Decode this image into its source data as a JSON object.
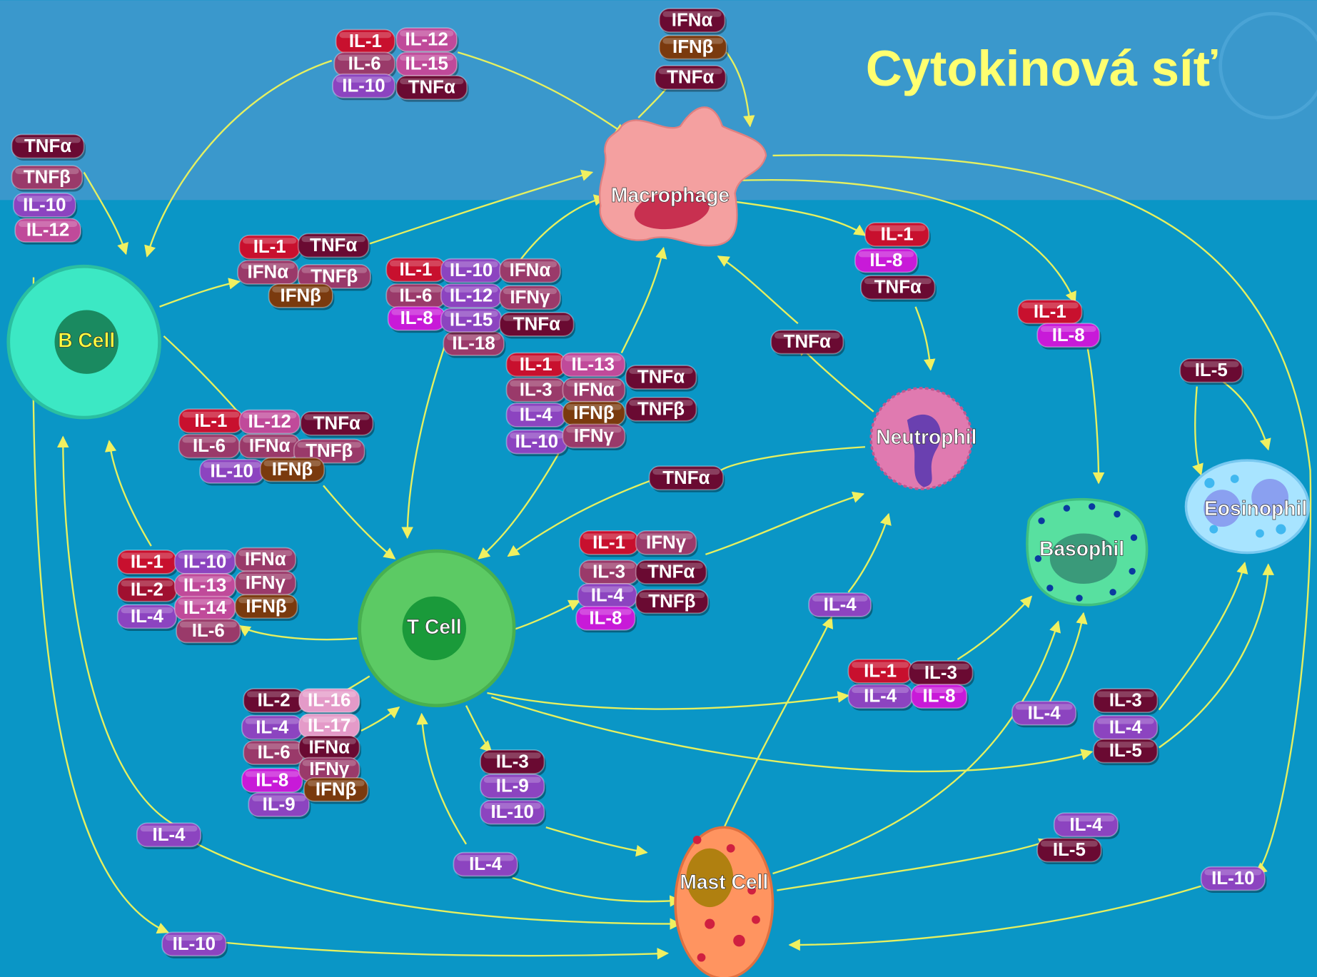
{
  "title": "Cytokinová síť",
  "cells": [
    "B Cell",
    "Macrophage",
    "Neutrophil",
    "T Cell",
    "Basophil",
    "Eosinophil",
    "Mast Cell"
  ],
  "cytokine_groups": [
    {
      "tags": [
        {
          "label": "IL-1",
          "color": "#c8102e"
        },
        {
          "label": "IL-12",
          "color": "#c04a9a"
        },
        {
          "label": "IL-6",
          "color": "#9a3a6a"
        },
        {
          "label": "IL-15",
          "color": "#c04a9a"
        },
        {
          "label": "IL-10",
          "color": "#8c44c0"
        },
        {
          "label": "TNFα",
          "color": "#6a0a32"
        }
      ]
    },
    {
      "tags": [
        {
          "label": "IFNα",
          "color": "#6a0a32"
        },
        {
          "label": "IFNβ",
          "color": "#7a3a0e"
        },
        {
          "label": "TNFα",
          "color": "#6a0a32"
        }
      ]
    },
    {
      "tags": [
        {
          "label": "TNFα",
          "color": "#6a0a32"
        },
        {
          "label": "TNFβ",
          "color": "#9a3a6a"
        },
        {
          "label": "IL-10",
          "color": "#8c44c0"
        },
        {
          "label": "IL-12",
          "color": "#c04a9a"
        }
      ]
    },
    {
      "tags": [
        {
          "label": "IL-1",
          "color": "#c8102e"
        },
        {
          "label": "TNFα",
          "color": "#6a0a32"
        },
        {
          "label": "IFNα",
          "color": "#9a3a6a"
        },
        {
          "label": "TNFβ",
          "color": "#9a3a6a"
        },
        {
          "label": "IFNβ",
          "color": "#7a3a0e"
        }
      ]
    },
    {
      "tags": [
        {
          "label": "IL-18",
          "color": "#9a3a6a"
        },
        {
          "label": "IL-1",
          "color": "#c8102e"
        },
        {
          "label": "IL-10",
          "color": "#8c44c0"
        },
        {
          "label": "IFNα",
          "color": "#9a3a6a"
        },
        {
          "label": "IL-6",
          "color": "#9a3a6a"
        },
        {
          "label": "IL-12",
          "color": "#8c44c0"
        },
        {
          "label": "IFNγ",
          "color": "#9a3a6a"
        },
        {
          "label": "IL-8",
          "color": "#c81ad8"
        },
        {
          "label": "IL-15",
          "color": "#8c44c0"
        },
        {
          "label": "TNFα",
          "color": "#6a0a32"
        }
      ]
    },
    {
      "tags": [
        {
          "label": "IL-1",
          "color": "#c8102e"
        },
        {
          "label": "IL-13",
          "color": "#c04a9a"
        },
        {
          "label": "TNFα",
          "color": "#6a0a32"
        },
        {
          "label": "IL-3",
          "color": "#9a3a6a"
        },
        {
          "label": "IFNα",
          "color": "#9a3a6a"
        },
        {
          "label": "IL-4",
          "color": "#8c44c0"
        },
        {
          "label": "IFNβ",
          "color": "#7a3a0e"
        },
        {
          "label": "TNFβ",
          "color": "#6a0a32"
        },
        {
          "label": "IL-10",
          "color": "#8c44c0"
        },
        {
          "label": "IFNγ",
          "color": "#9a3a6a"
        }
      ]
    },
    {
      "tags": [
        {
          "label": "TNFα",
          "color": "#6a0a32"
        }
      ]
    },
    {
      "tags": [
        {
          "label": "TNFα",
          "color": "#6a0a32"
        }
      ]
    },
    {
      "tags": [
        {
          "label": "IL-1",
          "color": "#c8102e"
        },
        {
          "label": "IL-8",
          "color": "#c81ad8"
        },
        {
          "label": "TNFα",
          "color": "#6a0a32"
        }
      ]
    },
    {
      "tags": [
        {
          "label": "IL-1",
          "color": "#c8102e"
        },
        {
          "label": "IL-8",
          "color": "#c81ad8"
        }
      ]
    },
    {
      "tags": [
        {
          "label": "IL-5",
          "color": "#6a0a32"
        }
      ]
    },
    {
      "tags": [
        {
          "label": "IL-1",
          "color": "#c8102e"
        },
        {
          "label": "IL-12",
          "color": "#c04a9a"
        },
        {
          "label": "TNFα",
          "color": "#6a0a32"
        },
        {
          "label": "IL-6",
          "color": "#9a3a6a"
        },
        {
          "label": "IFNα",
          "color": "#9a3a6a"
        },
        {
          "label": "TNFβ",
          "color": "#9a3a6a"
        },
        {
          "label": "IL-10",
          "color": "#8c44c0"
        },
        {
          "label": "IFNβ",
          "color": "#7a3a0e"
        }
      ]
    },
    {
      "tags": [
        {
          "label": "IL-1",
          "color": "#c8102e"
        },
        {
          "label": "IL-10",
          "color": "#8c44c0"
        },
        {
          "label": "IFNα",
          "color": "#9a3a6a"
        },
        {
          "label": "IL-2",
          "color": "#a01030"
        },
        {
          "label": "IL-13",
          "color": "#c04a9a"
        },
        {
          "label": "IFNγ",
          "color": "#9a3a6a"
        },
        {
          "label": "IL-4",
          "color": "#8c44c0"
        },
        {
          "label": "IL-14",
          "color": "#c04a9a"
        },
        {
          "label": "IFNβ",
          "color": "#7a3a0e"
        },
        {
          "label": "IL-6",
          "color": "#9a3a6a"
        }
      ]
    },
    {
      "tags": [
        {
          "label": "IL-1",
          "color": "#c8102e"
        },
        {
          "label": "IFNγ",
          "color": "#9a3a6a"
        },
        {
          "label": "IL-3",
          "color": "#9a3a6a"
        },
        {
          "label": "TNFα",
          "color": "#6a0a32"
        },
        {
          "label": "IL-4",
          "color": "#8c44c0"
        },
        {
          "label": "TNFβ",
          "color": "#6a0a32"
        },
        {
          "label": "IL-8",
          "color": "#c81ad8"
        }
      ]
    },
    {
      "tags": [
        {
          "label": "IL-4",
          "color": "#8c44c0"
        }
      ]
    },
    {
      "tags": [
        {
          "label": "IL-1",
          "color": "#c8102e"
        },
        {
          "label": "IL-3",
          "color": "#6a0a32"
        },
        {
          "label": "IL-4",
          "color": "#8c44c0"
        },
        {
          "label": "IL-8",
          "color": "#c81ad8"
        }
      ]
    },
    {
      "tags": [
        {
          "label": "IL-4",
          "color": "#8c44c0"
        }
      ]
    },
    {
      "tags": [
        {
          "label": "IL-3",
          "color": "#6a0a32"
        },
        {
          "label": "IL-4",
          "color": "#8c44c0"
        },
        {
          "label": "IL-5",
          "color": "#6a0a32"
        }
      ]
    },
    {
      "tags": [
        {
          "label": "IL-2",
          "color": "#6a0a32"
        },
        {
          "label": "IL-16",
          "color": "#e49ac8"
        },
        {
          "label": "IL-4",
          "color": "#8c44c0"
        },
        {
          "label": "IL-17",
          "color": "#e49ac8"
        },
        {
          "label": "IL-6",
          "color": "#9a3a6a"
        },
        {
          "label": "IFNα",
          "color": "#6a0a32"
        },
        {
          "label": "IL-8",
          "color": "#c81ad8"
        },
        {
          "label": "IFNγ",
          "color": "#9a3a6a"
        },
        {
          "label": "IL-9",
          "color": "#8c44c0"
        },
        {
          "label": "IFNβ",
          "color": "#7a3a0e"
        }
      ]
    },
    {
      "tags": [
        {
          "label": "IL-3",
          "color": "#6a0a32"
        },
        {
          "label": "IL-9",
          "color": "#8c44c0"
        },
        {
          "label": "IL-10",
          "color": "#8c44c0"
        }
      ]
    },
    {
      "tags": [
        {
          "label": "IL-4",
          "color": "#8c44c0"
        }
      ]
    },
    {
      "tags": [
        {
          "label": "IL-4",
          "color": "#8c44c0"
        }
      ]
    },
    {
      "tags": [
        {
          "label": "IL-10",
          "color": "#8c44c0"
        }
      ]
    },
    {
      "tags": [
        {
          "label": "IL-4",
          "color": "#8c44c0"
        },
        {
          "label": "IL-5",
          "color": "#6a0a32"
        }
      ]
    },
    {
      "tags": [
        {
          "label": "IL-10",
          "color": "#8c44c0"
        }
      ]
    }
  ]
}
